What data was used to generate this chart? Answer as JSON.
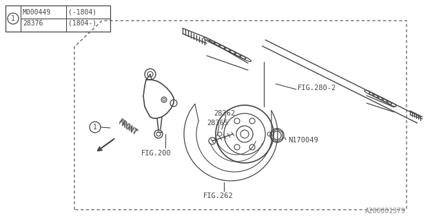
{
  "bg_color": "#ffffff",
  "line_color": "#444444",
  "light_line_color": "#888888",
  "title_code": "A280001379",
  "figsize": [
    6.4,
    3.2
  ],
  "dpi": 100,
  "table_rows": [
    [
      "M000449",
      "(-1804)"
    ],
    [
      "28376",
      "(1804-)"
    ]
  ],
  "labels": {
    "FIG200": "FIG.200",
    "FIG262": "FIG.262",
    "FIG280": "FIG.280-2",
    "28362": "28362",
    "28365": "28365",
    "N170049": "N170049",
    "FRONT": "FRONT"
  }
}
